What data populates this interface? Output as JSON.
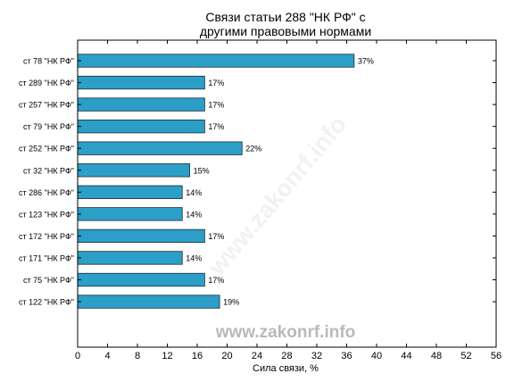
{
  "chart_data": {
    "type": "bar",
    "orientation": "horizontal",
    "title_line1": "Связи статьи 288 \"НК РФ\" с",
    "title_line2": "другими правовыми нормами",
    "xlabel": "Сила связи, %",
    "ylabel": "",
    "xlim": [
      0,
      56
    ],
    "xticks": [
      "0",
      "4",
      "8",
      "12",
      "16",
      "20",
      "24",
      "28",
      "32",
      "36",
      "40",
      "44",
      "48",
      "52",
      "56"
    ],
    "grid": false,
    "categories": [
      "ст 78 \"НК РФ\"",
      "ст 289 \"НК РФ\"",
      "ст 257 \"НК РФ\"",
      "ст 79 \"НК РФ\"",
      "ст 252 \"НК РФ\"",
      "ст 32 \"НК РФ\"",
      "ст 286 \"НК РФ\"",
      "ст 123 \"НК РФ\"",
      "ст 172 \"НК РФ\"",
      "ст 171 \"НК РФ\"",
      "ст 75 \"НК РФ\"",
      "ст 122 \"НК РФ\""
    ],
    "values": [
      37,
      17,
      17,
      17,
      22,
      15,
      14,
      14,
      17,
      14,
      17,
      19
    ],
    "value_labels": [
      "37%",
      "17%",
      "17%",
      "17%",
      "22%",
      "15%",
      "14%",
      "14%",
      "17%",
      "14%",
      "17%",
      "19%"
    ],
    "bar_color": "#2b9fc7",
    "bar_edge_color": "#1d2c35",
    "watermark": "www.zakonrf.info",
    "watermark_diagonal": "www.zakonrf.info",
    "watermark_color": "#b9b9b9"
  }
}
